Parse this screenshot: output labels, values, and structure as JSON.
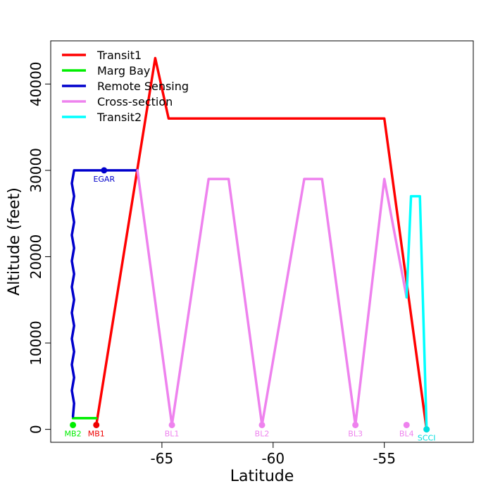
{
  "chart_data": {
    "type": "line",
    "xlabel": "Latitude",
    "ylabel": "Altitude (feet)",
    "xlim": [
      -70.0,
      -51.0
    ],
    "ylim": [
      -1500,
      45000
    ],
    "x_ticks": [
      -65,
      -60,
      -55
    ],
    "x_tick_labels": [
      "-65",
      "-60",
      "-55"
    ],
    "y_ticks": [
      0,
      10000,
      20000,
      30000,
      40000
    ],
    "y_tick_labels": [
      "0",
      "10000",
      "20000",
      "30000",
      "40000"
    ],
    "legend_position": "top-left",
    "series": [
      {
        "name": "Transit1",
        "color": "#ff0000",
        "points": [
          [
            -67.95,
            500
          ],
          [
            -65.3,
            43000
          ],
          [
            -64.7,
            36000
          ],
          [
            -55.0,
            36000
          ],
          [
            -53.1,
            0
          ]
        ]
      },
      {
        "name": "Marg Bay",
        "color": "#00ee00",
        "points": [
          [
            -69.0,
            1300
          ],
          [
            -67.95,
            1300
          ]
        ]
      },
      {
        "name": "Remote Sensing",
        "color": "#0000cc",
        "points": [
          [
            -69.0,
            1500
          ],
          [
            -68.95,
            3000
          ],
          [
            -69.05,
            4500
          ],
          [
            -68.95,
            6000
          ],
          [
            -69.05,
            7500
          ],
          [
            -68.95,
            9000
          ],
          [
            -69.05,
            10500
          ],
          [
            -68.95,
            12000
          ],
          [
            -69.05,
            13500
          ],
          [
            -68.95,
            15000
          ],
          [
            -69.05,
            16500
          ],
          [
            -68.95,
            18000
          ],
          [
            -69.05,
            19500
          ],
          [
            -68.95,
            21000
          ],
          [
            -69.05,
            22500
          ],
          [
            -68.95,
            24000
          ],
          [
            -69.05,
            25500
          ],
          [
            -68.95,
            27000
          ],
          [
            -69.05,
            28500
          ],
          [
            -68.95,
            30000
          ],
          [
            -66.1,
            30000
          ]
        ]
      },
      {
        "name": "Cross-section",
        "color": "#ee82ee",
        "points": [
          [
            -66.1,
            30000
          ],
          [
            -64.55,
            500
          ],
          [
            -62.9,
            29000
          ],
          [
            -62.0,
            29000
          ],
          [
            -60.5,
            500
          ],
          [
            -58.6,
            29000
          ],
          [
            -57.8,
            29000
          ],
          [
            -56.3,
            500
          ],
          [
            -55.0,
            29000
          ],
          [
            -54.0,
            15300
          ]
        ]
      },
      {
        "name": "Transit2",
        "color": "#00ffff",
        "points": [
          [
            -54.0,
            15300
          ],
          [
            -53.8,
            27000
          ],
          [
            -53.4,
            27000
          ],
          [
            -53.1,
            0
          ]
        ]
      }
    ],
    "waypoints": [
      {
        "label": "MB2",
        "x": -69.0,
        "y": 500,
        "color": "#00ee00"
      },
      {
        "label": "MB1",
        "x": -67.95,
        "y": 500,
        "color": "#ee0000"
      },
      {
        "label": "EGAR",
        "x": -67.6,
        "y": 30000,
        "color": "#0000cc"
      },
      {
        "label": "BL1",
        "x": -64.55,
        "y": 500,
        "color": "#ee82ee"
      },
      {
        "label": "BL2",
        "x": -60.5,
        "y": 500,
        "color": "#ee82ee"
      },
      {
        "label": "BL3",
        "x": -56.3,
        "y": 500,
        "color": "#ee82ee"
      },
      {
        "label": "BL4",
        "x": -54.0,
        "y": 500,
        "color": "#ee82ee"
      },
      {
        "label": "SCCI",
        "x": -53.1,
        "y": 0,
        "color": "#00dddd"
      }
    ]
  }
}
